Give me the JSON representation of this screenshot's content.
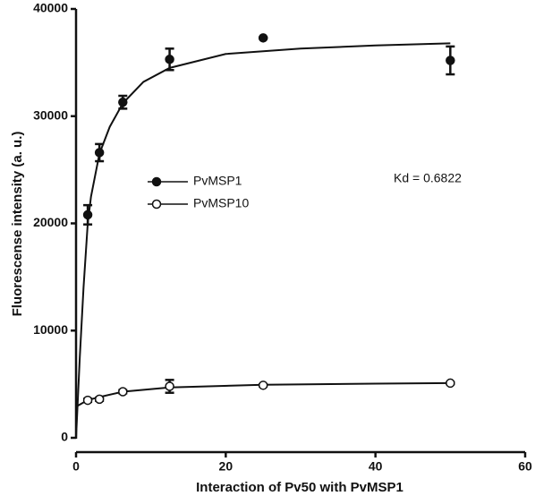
{
  "chart_data": {
    "type": "scatter",
    "xlabel": "Interaction of Pv50 with PvMSP1",
    "ylabel": "Fluorescense intensity (a. u.)",
    "annotation": "Kd = 0.6822",
    "xlim": [
      0,
      60
    ],
    "xticks": [
      0,
      20,
      40,
      60
    ],
    "ylim": [
      0,
      40000
    ],
    "yticks": [
      0,
      10000,
      20000,
      30000,
      40000
    ],
    "legend": "center-left",
    "series": [
      {
        "name": "PvMSP1",
        "color": "#111111",
        "filled": true,
        "x": [
          1.5625,
          3.125,
          6.25,
          12.5,
          25,
          50
        ],
        "values": [
          20800,
          26600,
          31300,
          35300,
          37300,
          35200
        ],
        "errors": [
          900,
          800,
          600,
          1000,
          0,
          1300
        ],
        "fit": {
          "x": [
            0,
            0.5,
            1,
            1.5625,
            2,
            3.125,
            4.5,
            6.25,
            9,
            12.5,
            20,
            30,
            40,
            50
          ],
          "values": [
            0,
            7500,
            14000,
            20000,
            22500,
            26500,
            29000,
            31200,
            33200,
            34500,
            35800,
            36300,
            36600,
            36800
          ]
        }
      },
      {
        "name": "PvMSP10",
        "color": "#111111",
        "filled": false,
        "x": [
          1.5625,
          3.125,
          6.25,
          12.5,
          25,
          50
        ],
        "values": [
          3500,
          3600,
          4300,
          4800,
          4900,
          5100
        ],
        "errors": [
          150,
          150,
          150,
          600,
          100,
          100
        ],
        "fit": {
          "x": [
            0,
            1,
            2,
            3.125,
            6.25,
            12.5,
            25,
            40,
            50
          ],
          "values": [
            2900,
            3300,
            3600,
            3800,
            4300,
            4700,
            4950,
            5050,
            5100
          ]
        }
      }
    ]
  }
}
